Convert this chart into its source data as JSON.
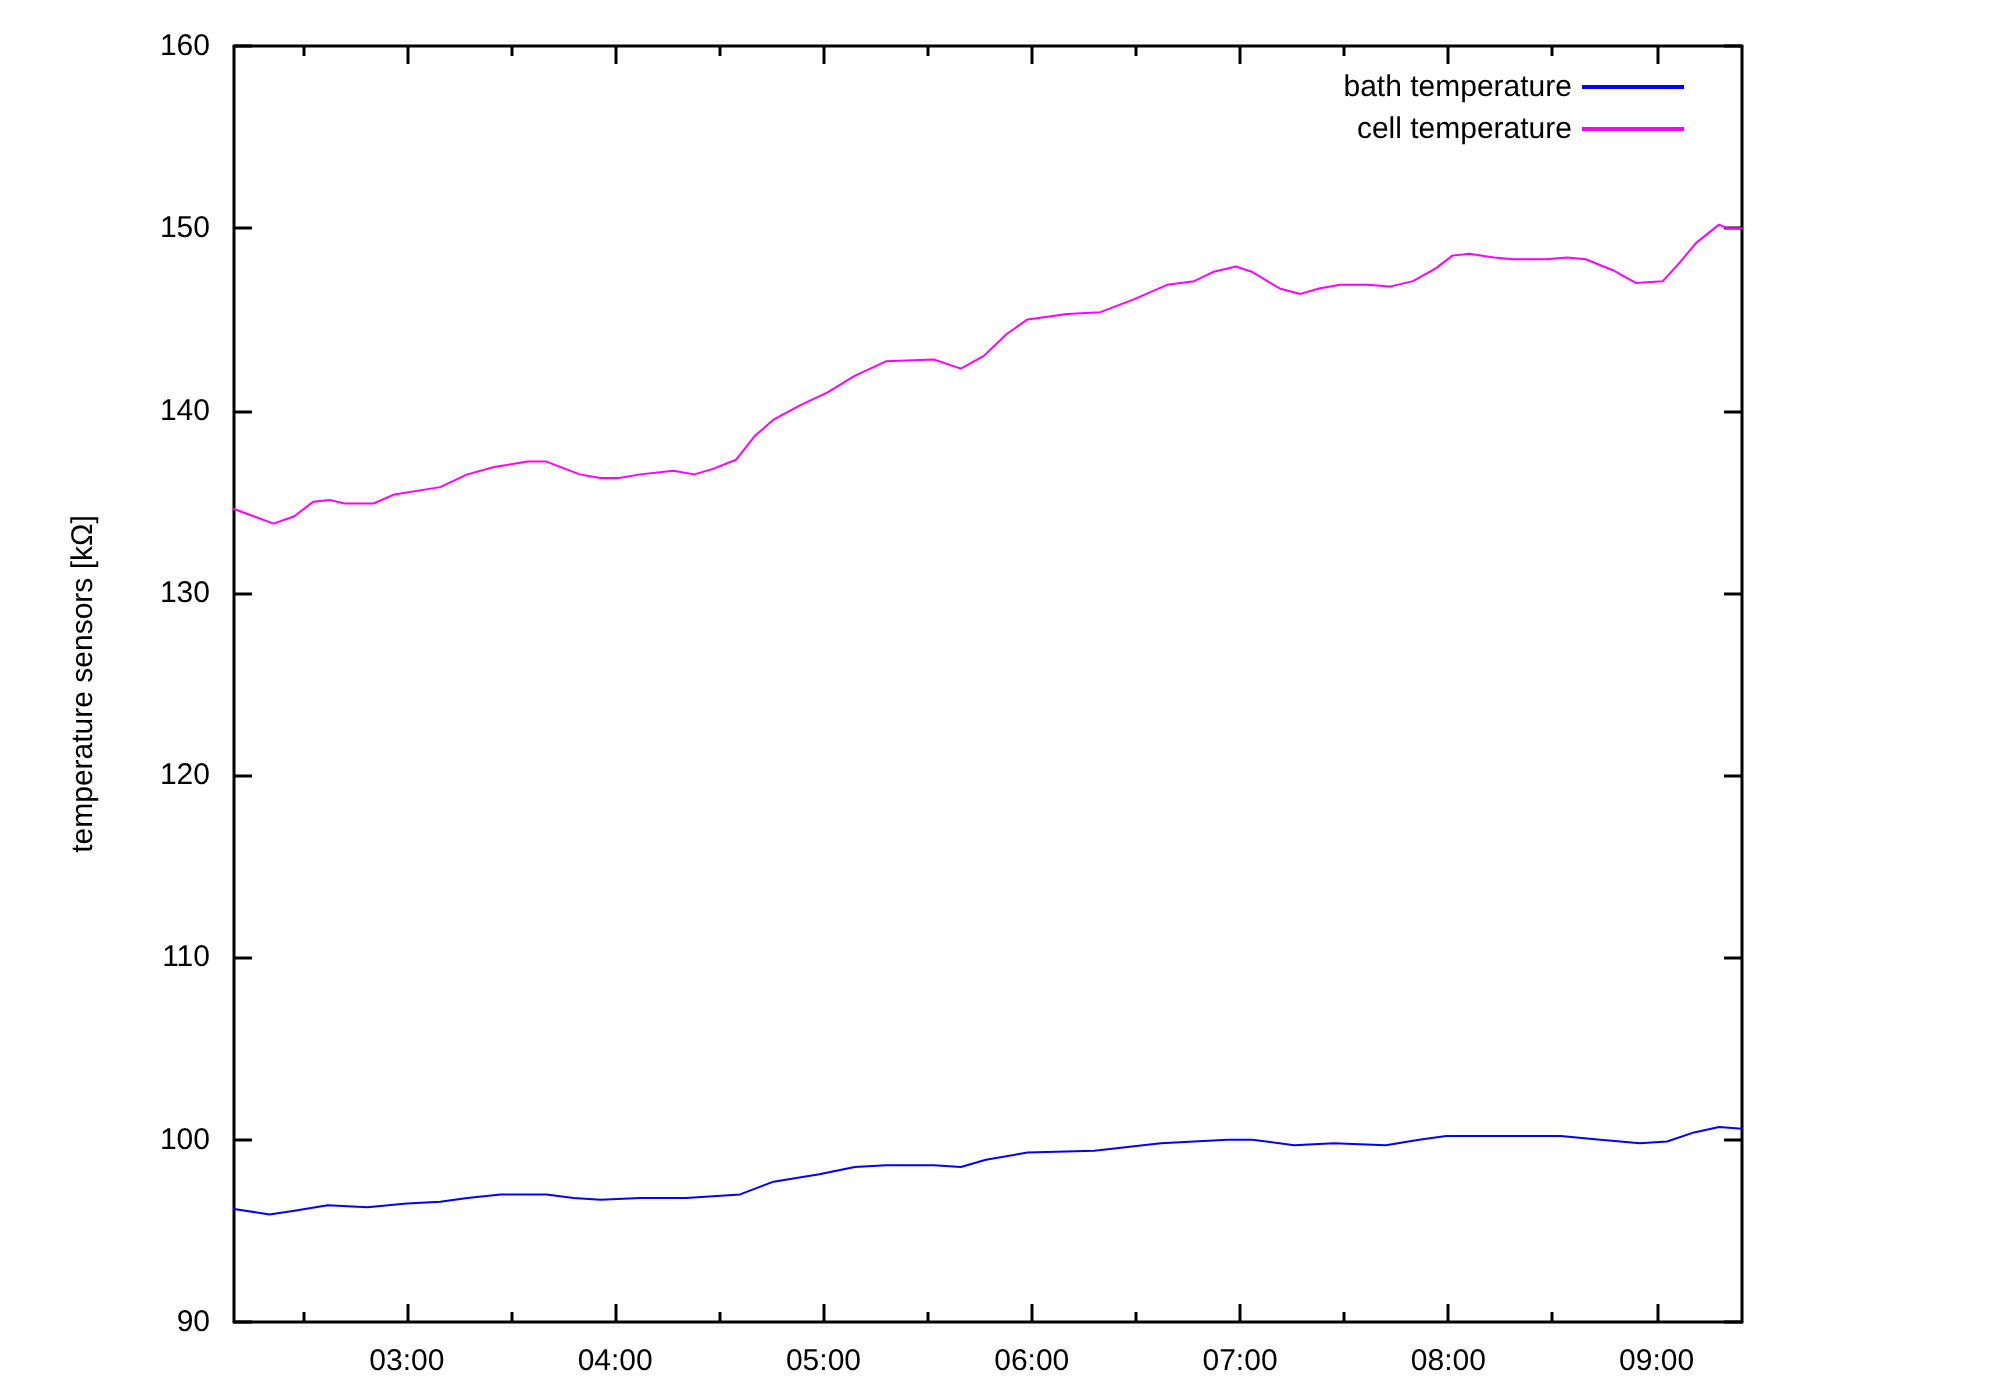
{
  "chart_data": {
    "type": "line",
    "ylabel": "temperature sensors [kΩ]",
    "xlim": [
      2.17,
      9.41
    ],
    "ylim": [
      90,
      160
    ],
    "xticks": [
      {
        "value": 2.5,
        "label": null
      },
      {
        "value": 3,
        "label": "03:00"
      },
      {
        "value": 3.5,
        "label": null
      },
      {
        "value": 4,
        "label": "04:00"
      },
      {
        "value": 4.5,
        "label": null
      },
      {
        "value": 5,
        "label": "05:00"
      },
      {
        "value": 5.5,
        "label": null
      },
      {
        "value": 6,
        "label": "06:00"
      },
      {
        "value": 6.5,
        "label": null
      },
      {
        "value": 7,
        "label": "07:00"
      },
      {
        "value": 7.5,
        "label": null
      },
      {
        "value": 8,
        "label": "08:00"
      },
      {
        "value": 8.5,
        "label": null
      },
      {
        "value": 9,
        "label": "09:00"
      }
    ],
    "yticks": [
      90,
      100,
      110,
      120,
      130,
      140,
      150,
      160
    ],
    "grid": false,
    "legend": "top right",
    "marker": "none",
    "line_style": "solid",
    "series": [
      {
        "name": "bath temperature",
        "color": "#0000ff",
        "x": [
          2.17,
          2.34,
          2.46,
          2.62,
          2.81,
          3.0,
          3.16,
          3.29,
          3.45,
          3.67,
          3.8,
          3.93,
          4.12,
          4.34,
          4.6,
          4.76,
          4.98,
          5.15,
          5.3,
          5.53,
          5.66,
          5.78,
          5.98,
          6.3,
          6.62,
          6.94,
          7.06,
          7.26,
          7.45,
          7.7,
          7.86,
          7.99,
          8.22,
          8.54,
          8.73,
          8.92,
          9.05,
          9.18,
          9.3,
          9.41
        ],
        "values": [
          96.2,
          95.9,
          96.1,
          96.4,
          96.3,
          96.5,
          96.6,
          96.8,
          97.0,
          97.0,
          96.8,
          96.7,
          96.8,
          96.8,
          97.0,
          97.7,
          98.1,
          98.5,
          98.6,
          98.6,
          98.5,
          98.9,
          99.3,
          99.4,
          99.8,
          100.0,
          100.0,
          99.7,
          99.8,
          99.7,
          100.0,
          100.2,
          100.2,
          100.2,
          100.0,
          99.8,
          99.9,
          100.4,
          100.7,
          100.6
        ]
      },
      {
        "name": "cell temperature",
        "color": "#ff00ff",
        "x": [
          2.17,
          2.36,
          2.46,
          2.55,
          2.63,
          2.7,
          2.84,
          2.94,
          3.16,
          3.29,
          3.42,
          3.58,
          3.67,
          3.83,
          3.93,
          4.02,
          4.12,
          4.28,
          4.38,
          4.47,
          4.58,
          4.67,
          4.76,
          4.89,
          5.02,
          5.15,
          5.3,
          5.53,
          5.66,
          5.77,
          5.88,
          5.98,
          6.17,
          6.33,
          6.49,
          6.65,
          6.78,
          6.87,
          6.98,
          7.06,
          7.19,
          7.29,
          7.38,
          7.48,
          7.61,
          7.72,
          7.83,
          7.94,
          8.02,
          8.1,
          8.22,
          8.31,
          8.47,
          8.57,
          8.66,
          8.79,
          8.9,
          9.03,
          9.11,
          9.19,
          9.3,
          9.34,
          9.41
        ],
        "values": [
          134.6,
          133.8,
          134.2,
          135.0,
          135.1,
          134.9,
          134.9,
          135.4,
          135.8,
          136.5,
          136.9,
          137.2,
          137.2,
          136.5,
          136.3,
          136.3,
          136.5,
          136.7,
          136.5,
          136.8,
          137.3,
          138.6,
          139.5,
          140.3,
          141.0,
          141.9,
          142.7,
          142.8,
          142.3,
          143.0,
          144.2,
          145.0,
          145.3,
          145.4,
          146.1,
          146.9,
          147.1,
          147.6,
          147.9,
          147.6,
          146.7,
          146.4,
          146.7,
          146.9,
          146.9,
          146.8,
          147.1,
          147.8,
          148.5,
          148.6,
          148.4,
          148.3,
          148.3,
          148.4,
          148.3,
          147.7,
          147.0,
          147.1,
          148.1,
          149.2,
          150.2,
          150.0,
          150.0
        ]
      }
    ]
  }
}
